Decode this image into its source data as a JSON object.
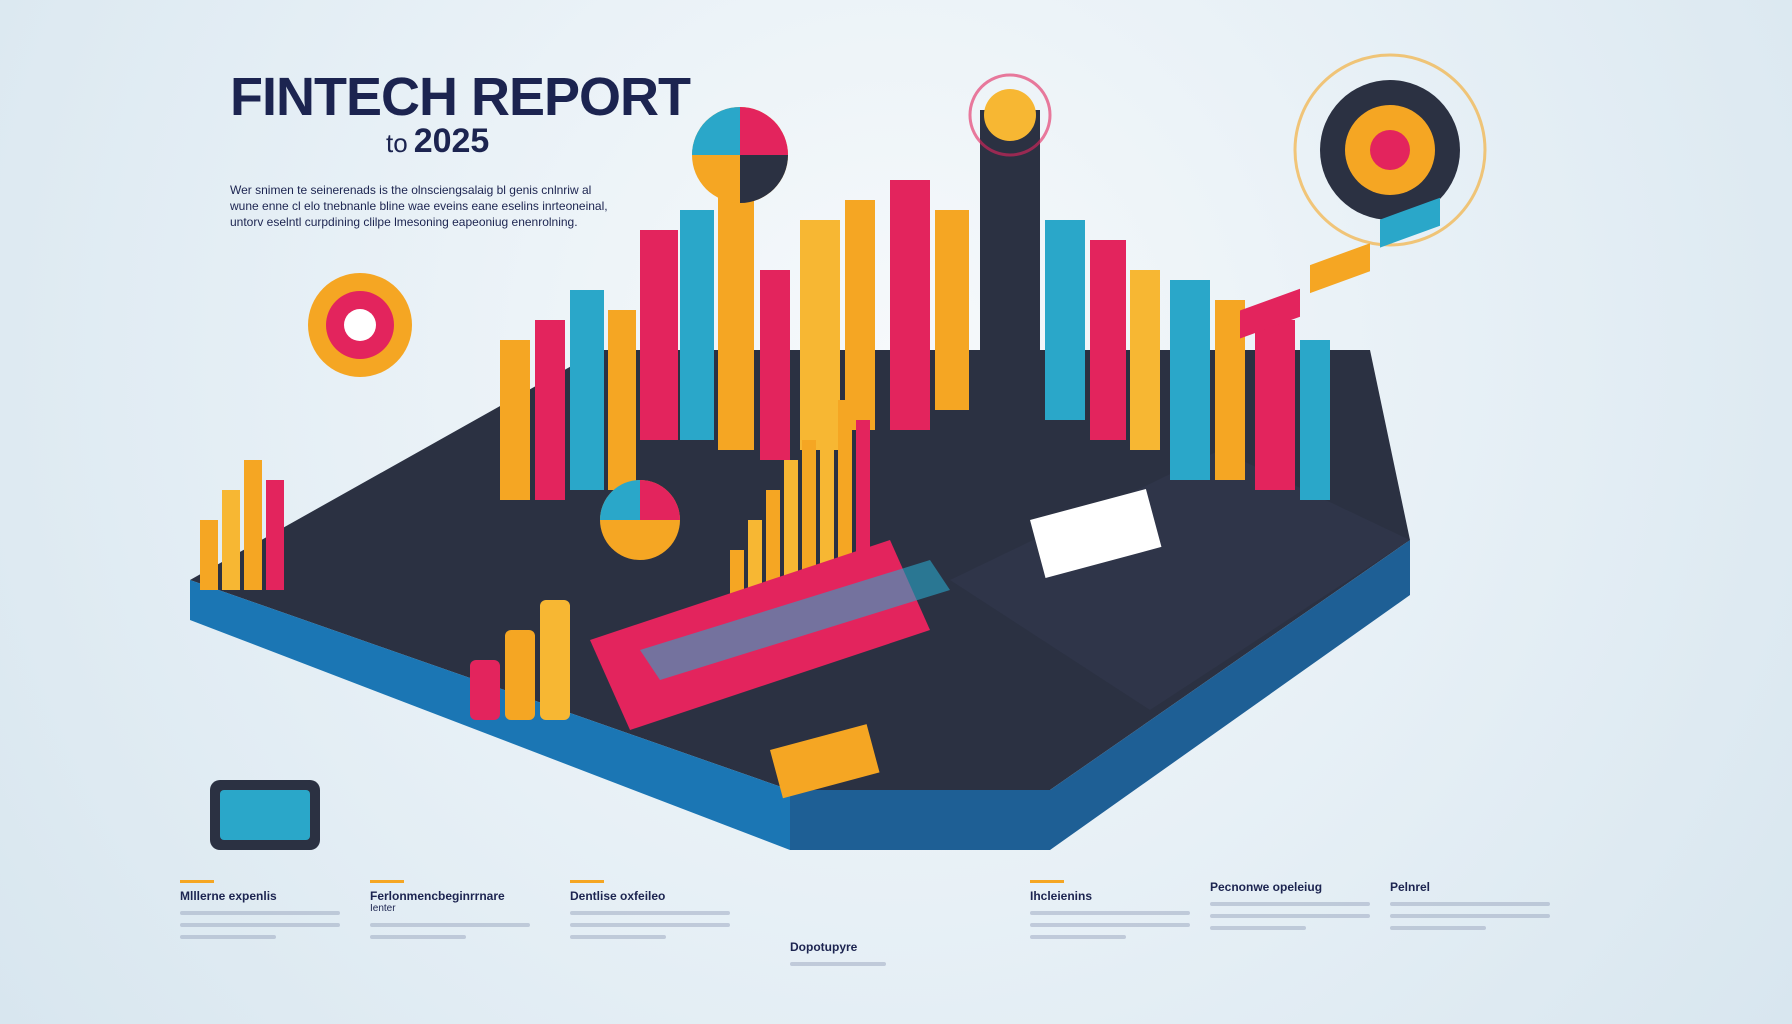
{
  "header": {
    "title": "FINTECH REPORT",
    "subtitle_prefix": "to",
    "subtitle_year": "2025",
    "intro_lines": [
      "Wer snimen te seinerenads is the olnsciengsalaig bl genis cnlnriw al",
      "wune enne cl elo tnebnanle bline wae eveins eane eselins inrteoneinal,",
      "untorv eselntl curpdining clilpe lmesoning eapeoniug enenrolning."
    ]
  },
  "footer": {
    "columns": [
      {
        "title": "Mlllerne expenlis",
        "sub": ""
      },
      {
        "title": "Ferlonmencbeginrrnare",
        "sub": "Ienter"
      },
      {
        "title": "Dentlise oxfeileo",
        "sub": ""
      },
      {
        "title": "Dopotupyre",
        "sub": ""
      },
      {
        "title": "Ihcleienins",
        "sub": ""
      },
      {
        "title": "Pecnonwe opeleiug",
        "sub": ""
      },
      {
        "title": "Pelnrel",
        "sub": ""
      }
    ]
  },
  "colors": {
    "navy": "#1c2450",
    "orange": "#f5a623",
    "magenta": "#e3245d",
    "teal": "#2aa7c9",
    "dark": "#2b3142"
  }
}
